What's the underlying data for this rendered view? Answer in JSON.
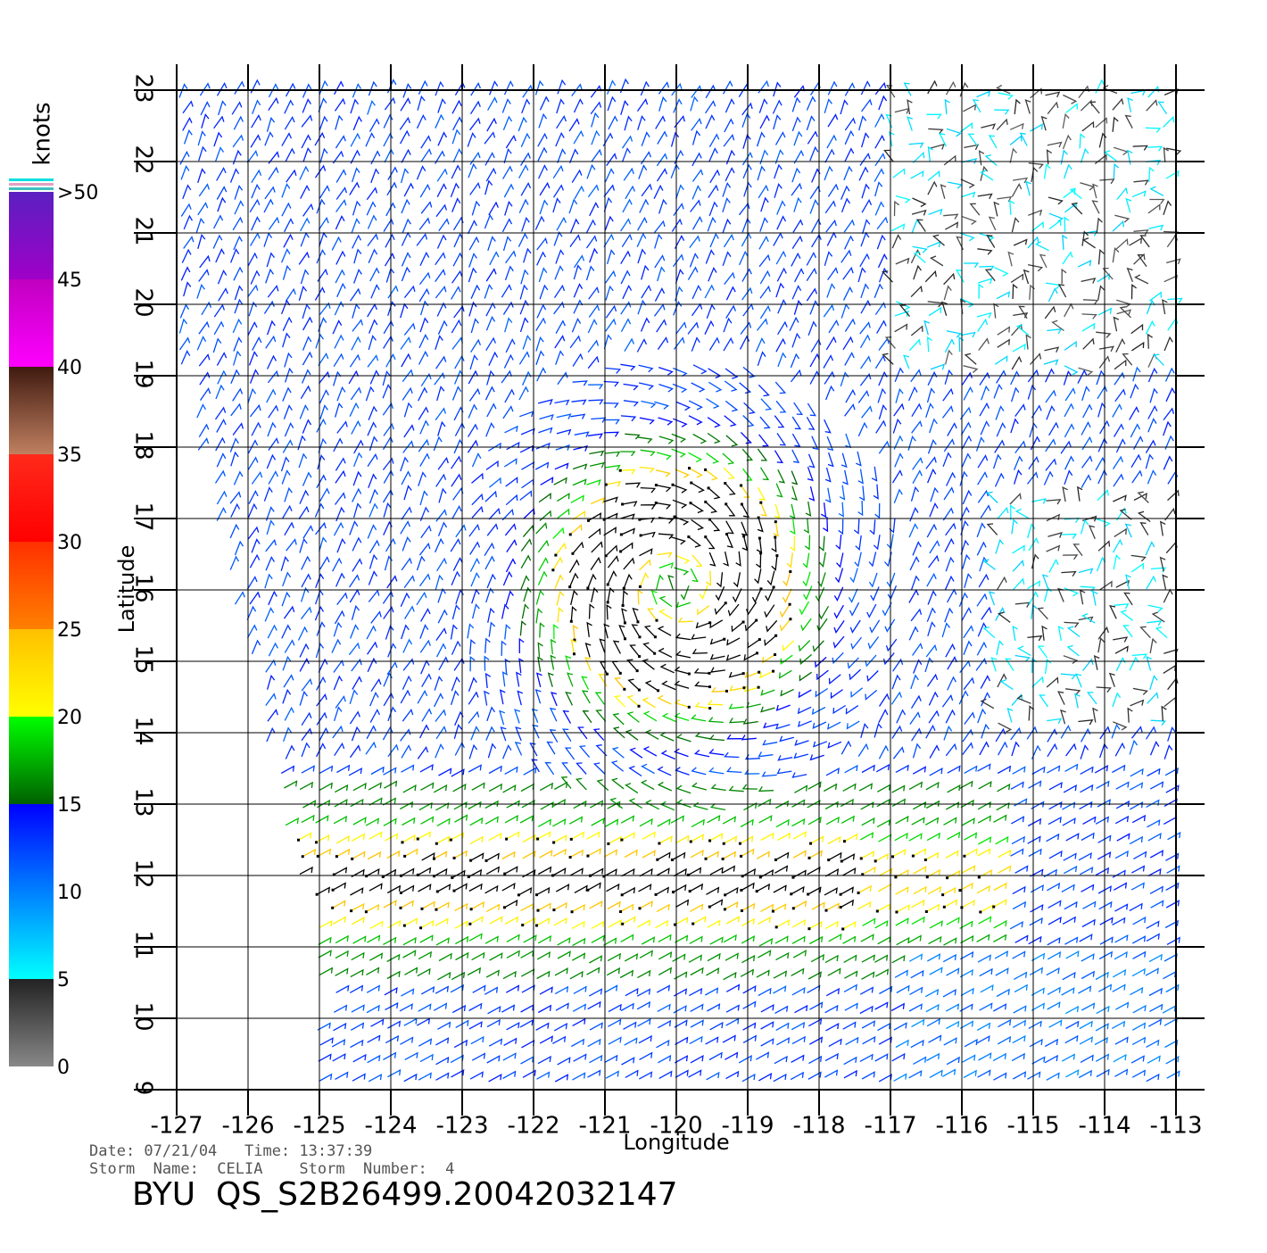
{
  "chart_data": {
    "type": "wind-barb-map",
    "xlabel": "Longitude",
    "ylabel": "Latitude",
    "xlim": [
      -127,
      -113
    ],
    "ylim": [
      9,
      23
    ],
    "xticks": [
      -127,
      -126,
      -125,
      -124,
      -123,
      -122,
      -121,
      -120,
      -119,
      -118,
      -117,
      -116,
      -115,
      -114,
      -113
    ],
    "yticks": [
      9,
      10,
      11,
      12,
      13,
      14,
      15,
      16,
      17,
      18,
      19,
      20,
      21,
      22,
      23
    ],
    "grid": true,
    "colorbar": {
      "label": "knots",
      "lim": [
        0,
        50
      ],
      "ticks": [
        0,
        5,
        10,
        15,
        20,
        25,
        30,
        35,
        40,
        45,
        {
          "value": 50,
          "label": ">50"
        }
      ],
      "colors": [
        [
          "#888888",
          "#222222"
        ],
        [
          "#00ffff",
          "#0080ff"
        ],
        [
          "#0080ff",
          "#0000ff"
        ],
        [
          "#006000",
          "#00ff00"
        ],
        [
          "#ffff00",
          "#ffc000"
        ],
        [
          "#ff8000",
          "#ff3000"
        ],
        [
          "#ff0000",
          "#ff2a1a"
        ],
        [
          "#c08060",
          "#401a10"
        ],
        [
          "#ff00ff",
          "#c000c0"
        ],
        [
          "#a000c8",
          "#5a20c0"
        ]
      ]
    },
    "footer": {
      "date_line": "Date: 07/21/04   Time: 13:37:39",
      "storm_line": "Storm  Name:  CELIA    Storm  Number:  4",
      "title": "BYU  QS_S2B26499.20042032147"
    }
  }
}
